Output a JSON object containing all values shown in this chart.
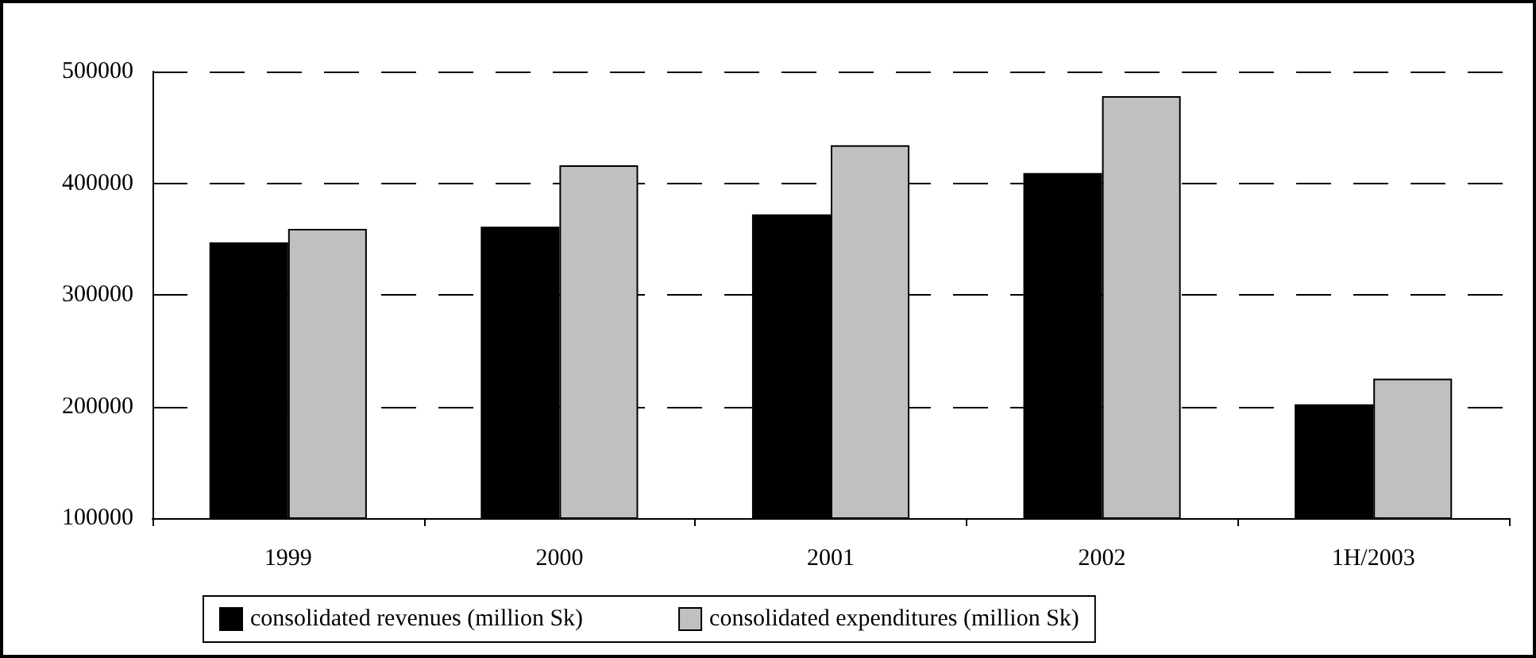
{
  "chart_data": {
    "type": "bar",
    "categories": [
      "1999",
      "2000",
      "2001",
      "2002",
      "1H/2003"
    ],
    "series": [
      {
        "name": "consolidated revenues (million Sk)",
        "color": "#000000",
        "values": [
          347000,
          361000,
          372000,
          409000,
          202000
        ]
      },
      {
        "name": "consolidated expenditures (million Sk)",
        "color": "#c0c0c0",
        "values": [
          359000,
          416000,
          434000,
          478000,
          225000
        ]
      }
    ],
    "ylim": [
      100000,
      500000
    ],
    "yticks": [
      100000,
      200000,
      300000,
      400000,
      500000
    ],
    "grid": "y",
    "legend": "bottom"
  }
}
